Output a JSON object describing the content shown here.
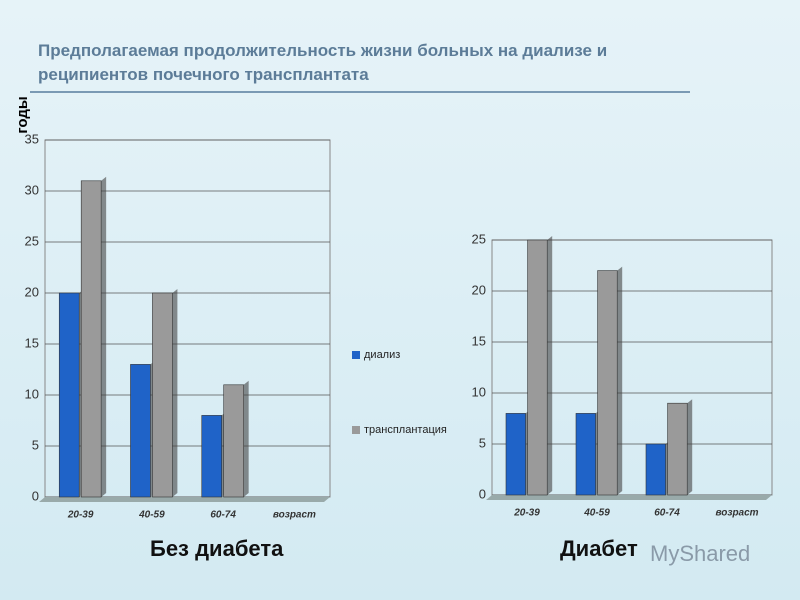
{
  "title": "Предполагаемая продолжительность жизни больных на диализе  и реципиентов почечного трансплантата",
  "watermark": "MyShared",
  "chart_data": [
    {
      "type": "bar",
      "title": "Без диабета",
      "y_label": "годы",
      "categories": [
        "20-39",
        "40-59",
        "60-74",
        "возраст"
      ],
      "series": [
        {
          "name": "диализ",
          "color": "#1f63c8",
          "values": [
            20,
            13,
            8,
            null
          ]
        },
        {
          "name": "трансплантация",
          "color": "#9a9a9a",
          "values": [
            31,
            20,
            11,
            null
          ]
        }
      ],
      "ylim": [
        0,
        35
      ],
      "yticks": [
        0,
        5,
        10,
        15,
        20,
        25,
        30,
        35
      ],
      "grid": true
    },
    {
      "type": "bar",
      "title": "Диабет",
      "categories": [
        "20-39",
        "40-59",
        "60-74",
        "возраст"
      ],
      "series": [
        {
          "color": "#1f63c8",
          "values": [
            8,
            8,
            5,
            null
          ]
        },
        {
          "color": "#9a9a9a",
          "values": [
            25,
            22,
            9,
            null
          ]
        }
      ],
      "ylim": [
        0,
        25
      ],
      "yticks": [
        0,
        5,
        10,
        15,
        20,
        25
      ],
      "grid": true
    }
  ]
}
